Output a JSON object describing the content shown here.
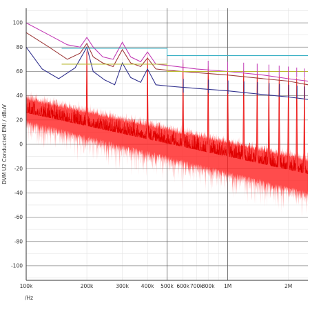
{
  "chart_data": {
    "type": "line",
    "title": "",
    "xlabel": "/Hz",
    "ylabel": "DVM U2 Conducted EMI / dBuV",
    "xscale": "log",
    "xlim": [
      100000,
      2500000
    ],
    "ylim": [
      -112,
      112
    ],
    "grid": true,
    "x_ticks": [
      {
        "value": 100000,
        "label": "100k"
      },
      {
        "value": 200000,
        "label": "200k"
      },
      {
        "value": 300000,
        "label": "300k"
      },
      {
        "value": 400000,
        "label": "400k"
      },
      {
        "value": 500000,
        "label": "500k"
      },
      {
        "value": 600000,
        "label": "600k"
      },
      {
        "value": 700000,
        "label": "700k"
      },
      {
        "value": 800000,
        "label": "800k"
      },
      {
        "value": 1000000,
        "label": "1M"
      },
      {
        "value": 2000000,
        "label": "2M"
      }
    ],
    "y_ticks": [
      100,
      80,
      60,
      40,
      20,
      0,
      -20,
      -40,
      -60,
      -80,
      -100
    ],
    "colors": {
      "spectrum": "#ff1a1a",
      "envelope_magenta": "#c23ab5",
      "envelope_brown": "#9e3b3b",
      "envelope_navy": "#33338f",
      "limit_cyan": "#39b0c4",
      "limit_olive": "#b8b830",
      "grid_minor": "#e3e3e3",
      "grid_major": "#555555"
    },
    "harmonic_fundamental_hz": 200000,
    "series": [
      {
        "key": "magenta",
        "x": [
          100000,
          130000,
          160000,
          185000,
          200000,
          215000,
          240000,
          270000,
          300000,
          330000,
          370000,
          400000,
          440000,
          500000,
          700000,
          1000000,
          1500000,
          2000000,
          2500000
        ],
        "y": [
          100,
          90,
          82,
          80,
          88,
          80,
          72,
          70,
          84,
          72,
          68,
          76,
          66,
          65,
          62,
          60,
          57,
          54,
          52
        ]
      },
      {
        "key": "brown",
        "x": [
          100000,
          130000,
          160000,
          185000,
          200000,
          215000,
          240000,
          270000,
          300000,
          330000,
          370000,
          400000,
          440000,
          500000,
          700000,
          1000000,
          1500000,
          2000000,
          2500000
        ],
        "y": [
          92,
          80,
          70,
          75,
          83,
          72,
          67,
          64,
          78,
          67,
          64,
          71,
          62,
          61,
          59,
          57,
          54,
          52,
          49
        ]
      },
      {
        "key": "navy",
        "x": [
          100000,
          120000,
          145000,
          175000,
          200000,
          215000,
          245000,
          275000,
          300000,
          330000,
          370000,
          400000,
          440000,
          500000,
          700000,
          1000000,
          1500000,
          2000000,
          2500000
        ],
        "y": [
          80,
          62,
          54,
          63,
          80,
          60,
          53,
          49,
          67,
          55,
          51,
          62,
          49,
          48,
          46,
          44,
          41,
          39,
          37
        ]
      },
      {
        "key": "limit_cyan",
        "x": [
          150000,
          500000,
          500000,
          2500000
        ],
        "y": [
          79,
          79,
          73,
          73
        ]
      },
      {
        "key": "limit_olive",
        "x": [
          150000,
          500000,
          500000,
          2500000
        ],
        "y": [
          66,
          66,
          60,
          60
        ]
      }
    ]
  }
}
